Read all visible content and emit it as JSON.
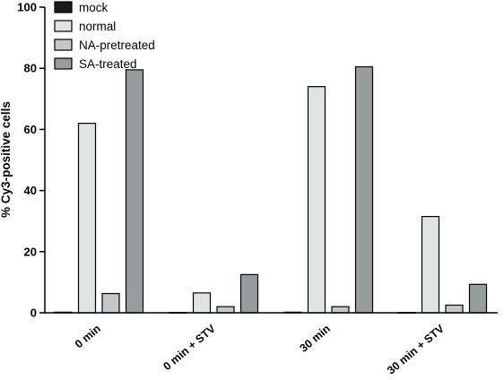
{
  "chart_data": {
    "type": "bar",
    "title": "",
    "xlabel": "",
    "ylabel": "% Cy3-positive cells",
    "ylim": [
      0,
      100
    ],
    "yticks": [
      0,
      20,
      40,
      60,
      80,
      100
    ],
    "categories": [
      "0 min",
      "0 min + STV",
      "30 min",
      "30 min + STV"
    ],
    "legend_position": "top-left",
    "grid": false,
    "series": [
      {
        "name": "mock",
        "color": "#1a1a1a",
        "values": [
          0.2,
          0.1,
          0.2,
          0.1
        ]
      },
      {
        "name": "normal",
        "color": "#e2e4e4",
        "values": [
          62,
          6.5,
          74,
          31.5
        ]
      },
      {
        "name": "NA-pretreated",
        "color": "#c5c8c8",
        "values": [
          6.3,
          2,
          2,
          2.5
        ]
      },
      {
        "name": "SA-treated",
        "color": "#979d9d",
        "values": [
          79.5,
          12.5,
          80.5,
          9.3
        ]
      }
    ]
  }
}
